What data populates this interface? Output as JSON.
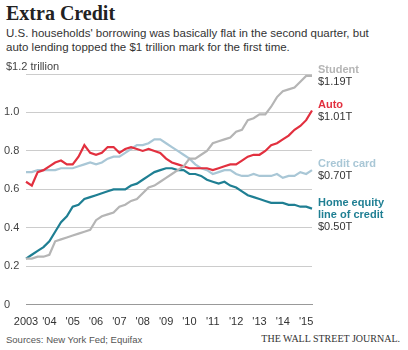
{
  "chart_data": {
    "type": "line",
    "title": "Extra Credit",
    "subtitle": "U.S. households' borrowing was basically flat in the second quarter, but auto lending topped the $1 trillion mark for the first time.",
    "source": "Sources: New York Fed; Equifax",
    "publisher": "THE WALL STREET JOURNAL.",
    "categories": [
      "2003",
      null,
      null,
      null,
      "'04",
      null,
      null,
      null,
      "'05",
      null,
      null,
      null,
      "'06",
      null,
      null,
      null,
      "'07",
      null,
      null,
      null,
      "'08",
      null,
      null,
      null,
      "'09",
      null,
      null,
      null,
      "'10",
      null,
      null,
      null,
      "'11",
      null,
      null,
      null,
      "'12",
      null,
      null,
      null,
      "'13",
      null,
      null,
      null,
      "'14",
      null,
      null,
      null,
      "'15",
      null
    ],
    "ylim": [
      0,
      1.2
    ],
    "yticks": [
      0,
      0.2,
      0.4,
      0.6,
      0.8,
      {
        "value": 1.0,
        "label": "1.0"
      },
      {
        "value": 1.2,
        "label": "$1.2 trillion"
      }
    ],
    "grid": true,
    "series": [
      {
        "name": "Student",
        "color": "#b5b5b5",
        "values": [
          0.24,
          0.24,
          0.25,
          0.25,
          0.26,
          0.33,
          0.34,
          0.35,
          0.36,
          0.37,
          0.38,
          0.39,
          0.44,
          0.46,
          0.47,
          0.48,
          0.51,
          0.52,
          0.54,
          0.55,
          0.58,
          0.61,
          0.62,
          0.64,
          0.66,
          0.68,
          0.7,
          0.72,
          0.76,
          0.76,
          0.78,
          0.8,
          0.84,
          0.85,
          0.86,
          0.87,
          0.9,
          0.91,
          0.96,
          0.97,
          0.99,
          0.99,
          1.03,
          1.08,
          1.11,
          1.12,
          1.13,
          1.16,
          1.19,
          1.19
        ],
        "value_labels": [
          null,
          null,
          null,
          null,
          null,
          null,
          null,
          null,
          null,
          null,
          null,
          null,
          null,
          null,
          null,
          null,
          null,
          null,
          null,
          null,
          null,
          null,
          null,
          null,
          null,
          null,
          null,
          null,
          null,
          null,
          null,
          null,
          null,
          null,
          null,
          null,
          null,
          null,
          null,
          null,
          null,
          null,
          null,
          null,
          null,
          null,
          null,
          null,
          null,
          "$1.19T"
        ]
      },
      {
        "name": "Auto",
        "color": "#e2303f",
        "values": [
          0.64,
          0.62,
          0.69,
          0.7,
          0.72,
          0.74,
          0.75,
          0.73,
          0.73,
          0.77,
          0.83,
          0.79,
          0.78,
          0.79,
          0.82,
          0.82,
          0.79,
          0.81,
          0.82,
          0.81,
          0.8,
          0.81,
          0.8,
          0.79,
          0.76,
          0.74,
          0.73,
          0.72,
          0.71,
          0.71,
          0.71,
          0.71,
          0.7,
          0.71,
          0.72,
          0.73,
          0.73,
          0.75,
          0.77,
          0.78,
          0.78,
          0.8,
          0.83,
          0.84,
          0.86,
          0.88,
          0.91,
          0.93,
          0.96,
          1.01
        ],
        "value_labels": [
          null,
          null,
          null,
          null,
          null,
          null,
          null,
          null,
          null,
          null,
          null,
          null,
          null,
          null,
          null,
          null,
          null,
          null,
          null,
          null,
          null,
          null,
          null,
          null,
          null,
          null,
          null,
          null,
          null,
          null,
          null,
          null,
          null,
          null,
          null,
          null,
          null,
          null,
          null,
          null,
          null,
          null,
          null,
          null,
          null,
          null,
          null,
          null,
          null,
          "$1.01T"
        ]
      },
      {
        "name": "Credit card",
        "color": "#a9c7d6",
        "values": [
          0.69,
          0.69,
          0.7,
          0.7,
          0.7,
          0.7,
          0.71,
          0.71,
          0.71,
          0.72,
          0.73,
          0.74,
          0.73,
          0.74,
          0.76,
          0.77,
          0.77,
          0.79,
          0.81,
          0.83,
          0.83,
          0.84,
          0.86,
          0.86,
          0.84,
          0.82,
          0.8,
          0.78,
          0.76,
          0.73,
          0.71,
          0.7,
          0.68,
          0.69,
          0.7,
          0.7,
          0.68,
          0.67,
          0.67,
          0.68,
          0.67,
          0.67,
          0.67,
          0.68,
          0.66,
          0.67,
          0.67,
          0.69,
          0.68,
          0.7
        ],
        "value_labels": [
          null,
          null,
          null,
          null,
          null,
          null,
          null,
          null,
          null,
          null,
          null,
          null,
          null,
          null,
          null,
          null,
          null,
          null,
          null,
          null,
          null,
          null,
          null,
          null,
          null,
          null,
          null,
          null,
          null,
          null,
          null,
          null,
          null,
          null,
          null,
          null,
          null,
          null,
          null,
          null,
          null,
          null,
          null,
          null,
          null,
          null,
          null,
          null,
          null,
          "$0.70T"
        ]
      },
      {
        "name": "Home equity line of credit",
        "color": "#1f7f93",
        "values": [
          0.24,
          0.26,
          0.28,
          0.3,
          0.33,
          0.38,
          0.43,
          0.46,
          0.51,
          0.52,
          0.55,
          0.56,
          0.57,
          0.58,
          0.59,
          0.6,
          0.6,
          0.6,
          0.62,
          0.63,
          0.65,
          0.67,
          0.69,
          0.7,
          0.71,
          0.71,
          0.7,
          0.7,
          0.68,
          0.68,
          0.67,
          0.65,
          0.64,
          0.63,
          0.64,
          0.62,
          0.61,
          0.59,
          0.57,
          0.56,
          0.55,
          0.54,
          0.53,
          0.53,
          0.53,
          0.52,
          0.52,
          0.51,
          0.51,
          0.5
        ],
        "value_labels": [
          null,
          null,
          null,
          null,
          null,
          null,
          null,
          null,
          null,
          null,
          null,
          null,
          null,
          null,
          null,
          null,
          null,
          null,
          null,
          null,
          null,
          null,
          null,
          null,
          null,
          null,
          null,
          null,
          null,
          null,
          null,
          null,
          null,
          null,
          null,
          null,
          null,
          null,
          null,
          null,
          null,
          null,
          null,
          null,
          null,
          null,
          null,
          null,
          null,
          "$0.50T"
        ]
      }
    ]
  }
}
